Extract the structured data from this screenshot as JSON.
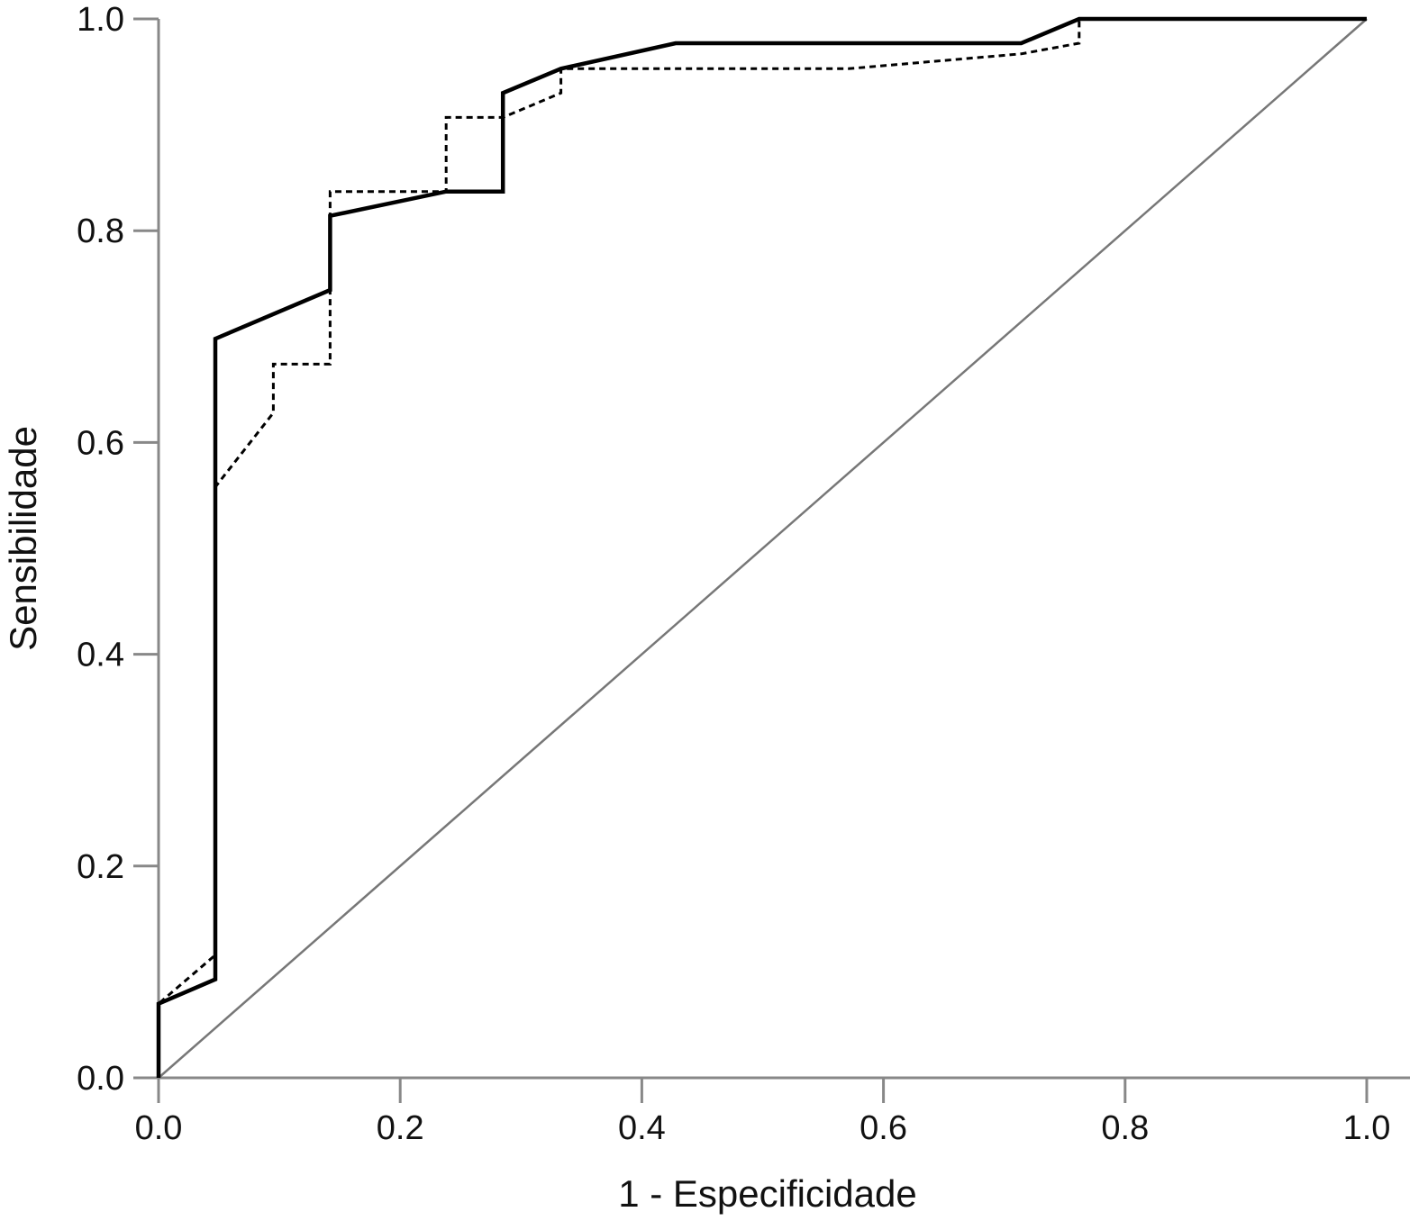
{
  "chart_data": {
    "type": "line",
    "title": "",
    "xlabel": "1 - Especificidade",
    "ylabel": "Sensibilidade",
    "xlim": [
      0,
      1
    ],
    "ylim": [
      0,
      1
    ],
    "x_ticks": [
      "0.0",
      "0.2",
      "0.4",
      "0.6",
      "0.8",
      "1.0"
    ],
    "y_ticks": [
      "0.0",
      "0.2",
      "0.4",
      "0.6",
      "0.8",
      "1.0"
    ],
    "grid": false,
    "legend": "none",
    "series": [
      {
        "style": "solid",
        "color": "#000000",
        "x": [
          0,
          0,
          0.047,
          0.047,
          0.142,
          0.142,
          0.238,
          0.285,
          0.285,
          0.333,
          0.428,
          0.714,
          0.762,
          1.0
        ],
        "y": [
          0,
          0.07,
          0.093,
          0.698,
          0.744,
          0.814,
          0.837,
          0.837,
          0.93,
          0.953,
          0.977,
          0.977,
          1.0,
          1.0
        ]
      },
      {
        "style": "dashed",
        "color": "#000000",
        "x": [
          0,
          0,
          0.047,
          0.047,
          0.095,
          0.095,
          0.142,
          0.142,
          0.238,
          0.238,
          0.285,
          0.333,
          0.333,
          0.571,
          0.714,
          0.762,
          0.762,
          1.0
        ],
        "y": [
          0,
          0.07,
          0.116,
          0.558,
          0.628,
          0.674,
          0.674,
          0.837,
          0.837,
          0.907,
          0.907,
          0.93,
          0.953,
          0.953,
          0.967,
          0.977,
          1.0,
          1.0
        ]
      },
      {
        "style": "reference",
        "color": "#777777",
        "x": [
          0,
          1
        ],
        "y": [
          0,
          1
        ]
      }
    ]
  }
}
